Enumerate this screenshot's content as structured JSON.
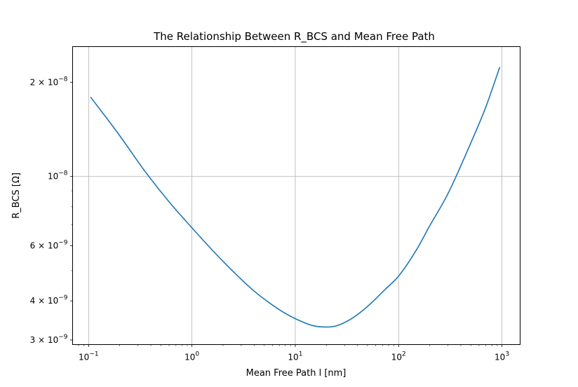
{
  "chart_data": {
    "type": "line",
    "title": "The Relationship Between R_BCS and Mean Free Path",
    "xlabel": "Mean Free Path l [nm]",
    "ylabel": "R_BCS [Ω]",
    "xscale": "log",
    "yscale": "log",
    "xlim": [
      0.07,
      1500
    ],
    "ylim": [
      2.9e-09,
      2.6e-08
    ],
    "grid": "on",
    "legend": "none",
    "x_ticks": [
      {
        "value": 0.1,
        "base": "10",
        "exp": "−1"
      },
      {
        "value": 1,
        "base": "10",
        "exp": "0"
      },
      {
        "value": 10,
        "base": "10",
        "exp": "1"
      },
      {
        "value": 100,
        "base": "10",
        "exp": "2"
      },
      {
        "value": 1000,
        "base": "10",
        "exp": "3"
      }
    ],
    "y_ticks": [
      {
        "value": 3e-09,
        "mant": "3 × ",
        "base": "10",
        "exp": "−9"
      },
      {
        "value": 4e-09,
        "mant": "4 × ",
        "base": "10",
        "exp": "−9"
      },
      {
        "value": 6e-09,
        "mant": "6 × ",
        "base": "10",
        "exp": "−9"
      },
      {
        "value": 1e-08,
        "mant": "",
        "base": "10",
        "exp": "−8"
      },
      {
        "value": 2e-08,
        "mant": "2 × ",
        "base": "10",
        "exp": "−8"
      }
    ],
    "y_grid_values": [
      1e-08
    ],
    "y_minor_ticks": [
      5e-09,
      7e-09,
      8e-09,
      9e-09
    ],
    "series": [
      {
        "color": "#1f77b4",
        "x": [
          0.105,
          0.2,
          0.35,
          0.6,
          1.0,
          2.0,
          4.0,
          7.0,
          10.0,
          15.0,
          20.0,
          25.0,
          35.0,
          50.0,
          75.0,
          100.0,
          150.0,
          200.0,
          300.0,
          500.0,
          700.0,
          950.0
        ],
        "y": [
          1.79e-08,
          1.35e-08,
          1.04e-08,
          8.3e-09,
          6.85e-09,
          5.35e-09,
          4.3e-09,
          3.75e-09,
          3.51e-09,
          3.33e-09,
          3.3e-09,
          3.33e-09,
          3.51e-09,
          3.84e-09,
          4.37e-09,
          4.8e-09,
          5.85e-09,
          6.95e-09,
          8.8e-09,
          1.28e-08,
          1.67e-08,
          2.23e-08
        ]
      }
    ]
  }
}
